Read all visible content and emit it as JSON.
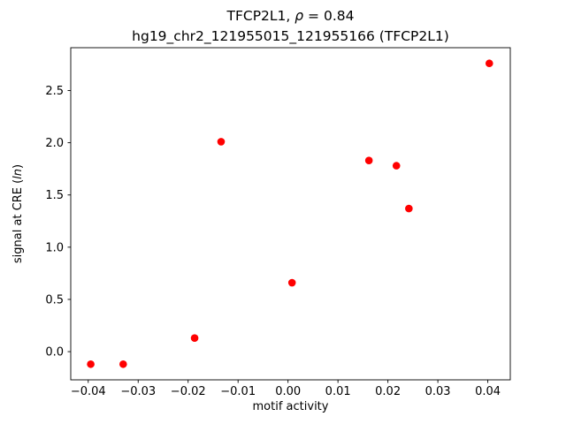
{
  "title": {
    "line1_prefix": "TFCP2L1, ",
    "line1_rho": "ρ",
    "line1_suffix": " = 0.84",
    "line2": "hg19_chr2_121955015_121955166 (TFCP2L1)"
  },
  "chart_data": {
    "type": "scatter",
    "title": "TFCP2L1, ρ = 0.84",
    "subtitle": "hg19_chr2_121955015_121955166 (TFCP2L1)",
    "xlabel": "motif activity",
    "ylabel": "signal at CRE (ln)",
    "ylabel_parts": [
      {
        "text": "signal at CRE (",
        "italic": false
      },
      {
        "text": "ln",
        "italic": true
      },
      {
        "text": ")",
        "italic": false
      }
    ],
    "marker_color": "#ff0000",
    "grid": false,
    "legend": "none",
    "xlim": [
      -0.0435,
      0.0445
    ],
    "ylim": [
      -0.27,
      2.91
    ],
    "x_tick_values": [
      -0.04,
      -0.03,
      -0.02,
      -0.01,
      0.0,
      0.01,
      0.02,
      0.03,
      0.04
    ],
    "x_tick_labels": [
      "−0.04",
      "−0.03",
      "−0.02",
      "−0.01",
      "0.00",
      "0.01",
      "0.02",
      "0.03",
      "0.04"
    ],
    "y_tick_values": [
      0.0,
      0.5,
      1.0,
      1.5,
      2.0,
      2.5
    ],
    "y_tick_labels": [
      "0.0",
      "0.5",
      "1.0",
      "1.5",
      "2.0",
      "2.5"
    ],
    "points": [
      {
        "x": -0.0395,
        "y": -0.12
      },
      {
        "x": -0.033,
        "y": -0.12
      },
      {
        "x": -0.0187,
        "y": 0.13
      },
      {
        "x": -0.0134,
        "y": 2.01
      },
      {
        "x": 0.0008,
        "y": 0.66
      },
      {
        "x": 0.0162,
        "y": 1.83
      },
      {
        "x": 0.0217,
        "y": 1.78
      },
      {
        "x": 0.0242,
        "y": 1.37
      },
      {
        "x": 0.0403,
        "y": 2.76
      }
    ]
  }
}
